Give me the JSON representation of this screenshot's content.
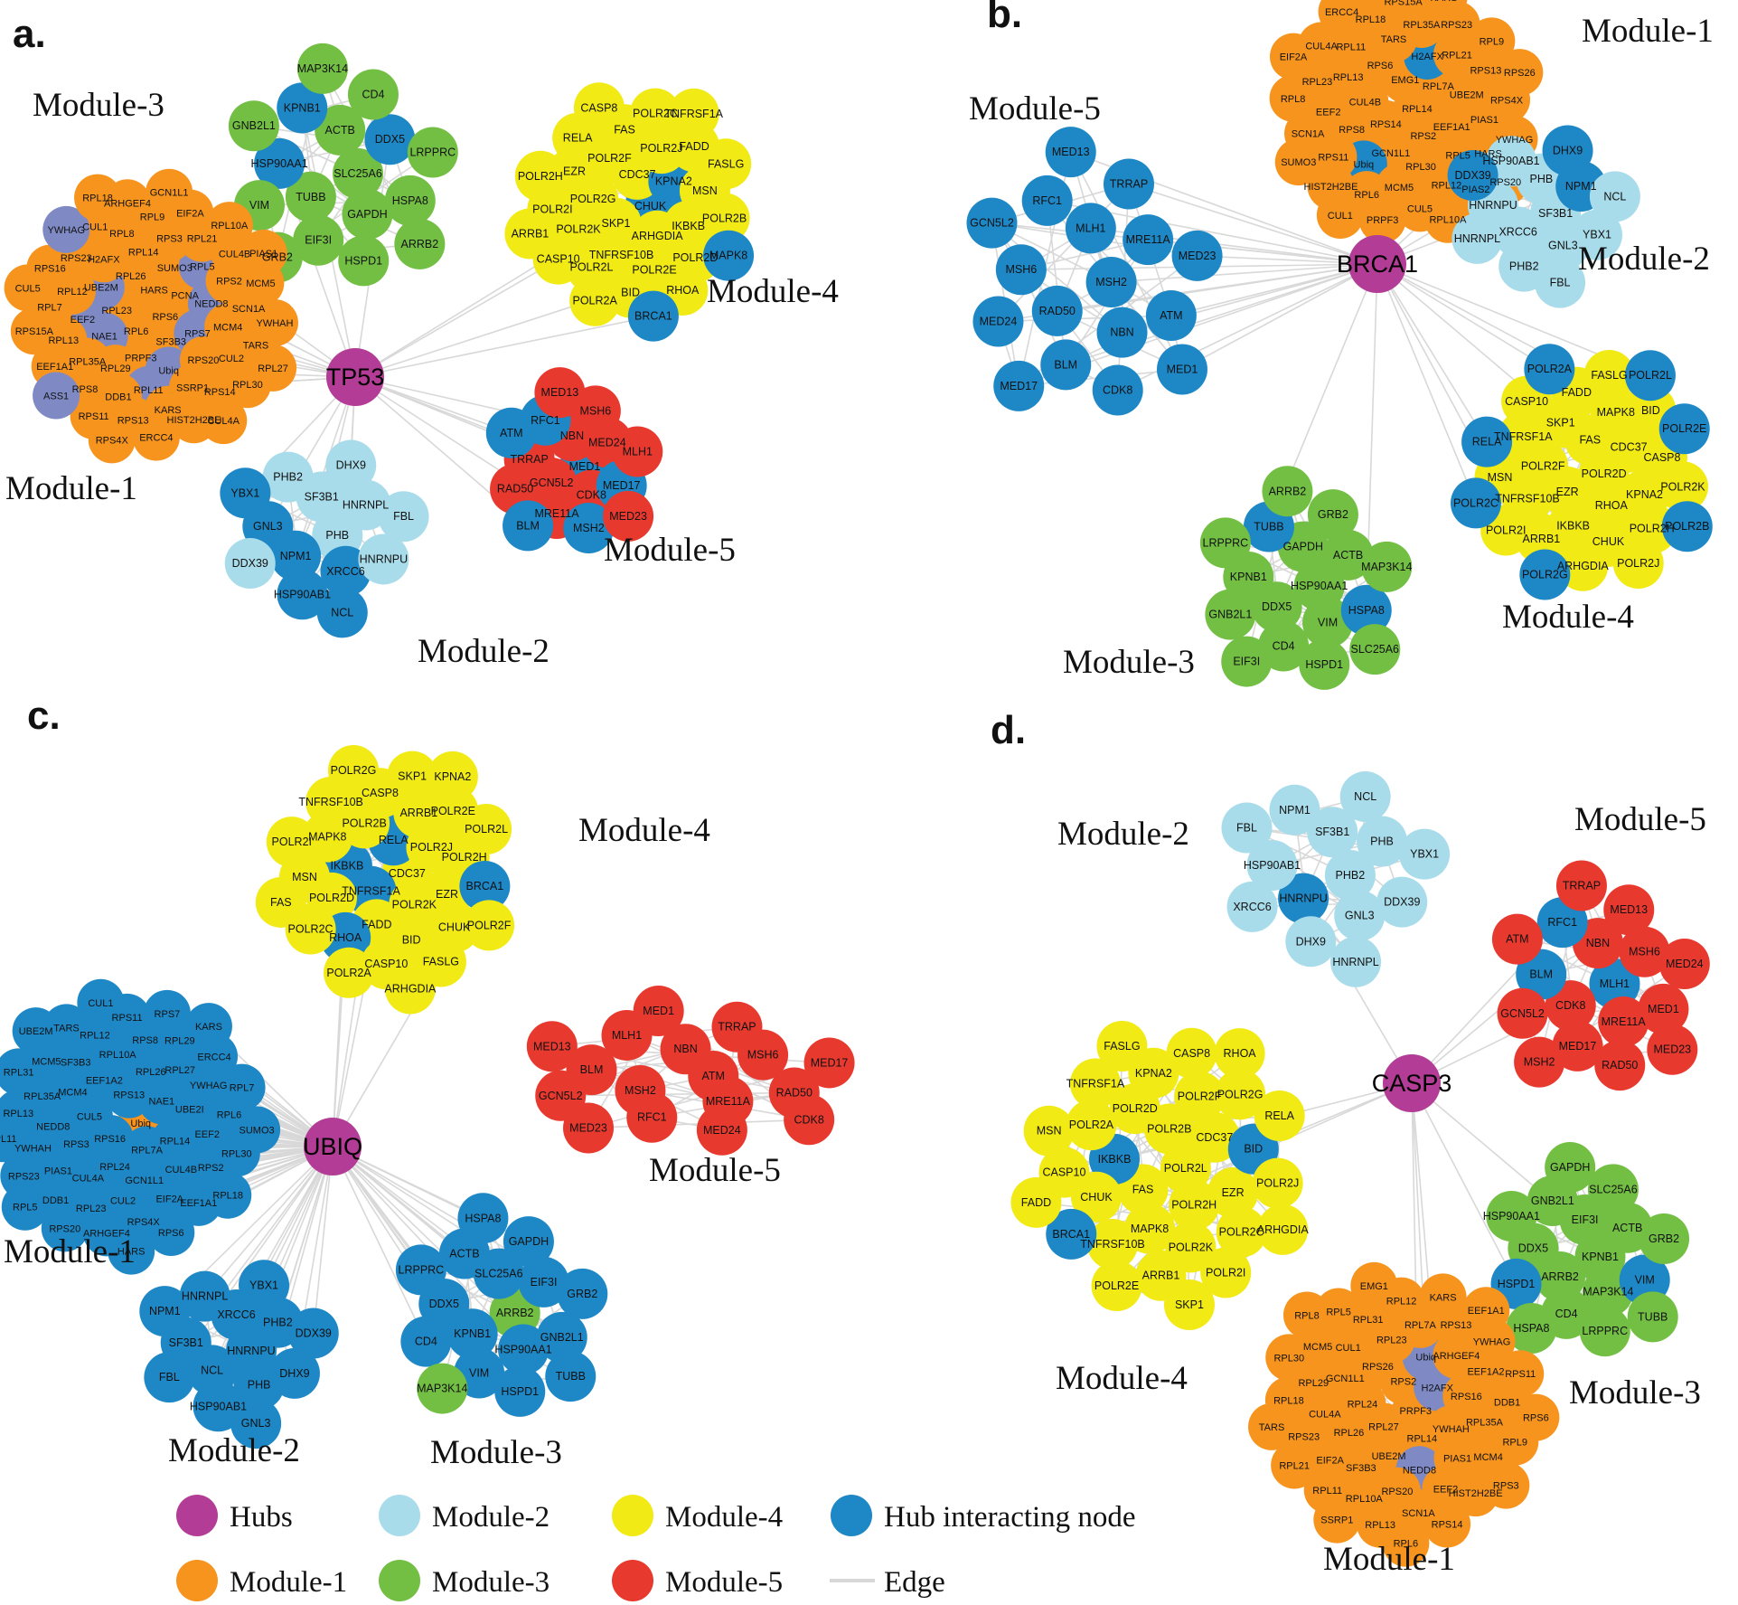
{
  "colors": {
    "hub": "#B23C96",
    "m1": "#F6941E",
    "m2": "#A9DCEA",
    "m3": "#72BF44",
    "m4": "#F1EA15",
    "m5": "#E8392F",
    "hub_node": "#1E87C6",
    "slate": "#7F8AC5",
    "edge": "#D8D8D8"
  },
  "legend": {
    "items": [
      {
        "key": "hub",
        "label": "Hubs"
      },
      {
        "key": "m2",
        "label": "Module-2"
      },
      {
        "key": "m4",
        "label": "Module-4"
      },
      {
        "key": "hub_node",
        "label": "Hub interacting node"
      },
      {
        "key": "m1",
        "label": "Module-1"
      },
      {
        "key": "m3",
        "label": "Module-3"
      },
      {
        "key": "m5",
        "label": "Module-5"
      },
      {
        "key": "edge",
        "label": "Edge"
      }
    ]
  },
  "panels": [
    {
      "id": "a",
      "letter": "a.",
      "hub_label": "TP53",
      "modules": [
        {
          "key": "m3",
          "name": "Module-3",
          "nodes": [
            "SLC25A6",
            "TUBB",
            "ACTB",
            "GAPDH",
            "HSP90AA1|h",
            "DDX5|h",
            "EIF3I",
            "KPNB1|h",
            "HSPA8",
            "VIM",
            "CD4",
            "HSPD1",
            "GNB2L1",
            "LRPPRC",
            "GRB2",
            "MAP3K14",
            "ARRB2"
          ]
        },
        {
          "key": "m1",
          "name": "Module-1",
          "nodes": [
            "RPS6",
            "RPL6",
            "HARS",
            "SF3B3",
            "RPL23",
            "PCNA",
            "PRPF3",
            "RPL26",
            "RPS7|s",
            "NAE1|s",
            "SUMO3",
            "Ubiq|s",
            "UBE2M|s",
            "NEDD8|s",
            "RPL29",
            "RPL14",
            "RPS20",
            "EEF2|s",
            "RPL5|s",
            "RPL11|s",
            "H2AFX",
            "MCM4",
            "RPL35A",
            "RPS3",
            "SSRP1",
            "RPL12",
            "RPS2",
            "DDB1",
            "RPL8",
            "CUL2",
            "RPL13",
            "RPL21",
            "KARS",
            "RPS23",
            "SCN1A",
            "RPS8",
            "RPL9",
            "RPS14",
            "RPL7",
            "CUL4B",
            "RPS13",
            "CUL1",
            "TARS",
            "EEF1A1",
            "EIF2A",
            "HIST2H2BE",
            "RPS16",
            "MCM5",
            "RPS11",
            "ARHGEF4",
            "RPL30",
            "RPS15A",
            "RPL10A",
            "ERCC4",
            "YWHAG|s",
            "YWHAH",
            "ASS1|s",
            "GCN1L1",
            "CUL4A",
            "CUL5",
            "PIAS1",
            "RPS4X",
            "RPL18",
            "RPL27"
          ]
        },
        {
          "key": "m4",
          "name": "Module-4",
          "nodes": [
            "CHUK|h",
            "SKP1",
            "CDC37",
            "ARHGDIA",
            "POLR2G",
            "KPNA2|h",
            "TNFRSF10B",
            "POLR2F",
            "IKBKB",
            "POLR2K",
            "POLR2J",
            "POLR2E",
            "EZR",
            "MSN",
            "POLR2L",
            "FAS",
            "POLR2D",
            "POLR2I",
            "FADD",
            "BID",
            "RELA",
            "POLR2B",
            "CASP10",
            "POLR2C",
            "RHOA",
            "POLR2H",
            "FASLG",
            "POLR2A",
            "CASP8",
            "MAPK8|h",
            "ARRB1",
            "TNFRSF1A",
            "BRCA1|h"
          ]
        },
        {
          "key": "m2",
          "name": "Module-2",
          "nodes": [
            "PHB",
            "NPM1|h",
            "SF3B1",
            "XRCC6|h",
            "GNL3|h",
            "HNRNPL",
            "HSP90AB1|h",
            "PHB2",
            "HNRNPU",
            "DDX39",
            "DHX9",
            "NCL|h",
            "YBX1|h",
            "FBL"
          ]
        },
        {
          "key": "m5",
          "name": "Module-5",
          "nodes": [
            "MED1|h",
            "GCN5L2",
            "NBN",
            "CDK8",
            "TRRAP",
            "MED24",
            "MRE11A",
            "RFC1|h",
            "MED17|h",
            "RAD50",
            "MSH6",
            "MSH2|h",
            "ATM|h",
            "MLH1",
            "BLM|h",
            "MED13",
            "MED23"
          ]
        }
      ]
    },
    {
      "id": "b",
      "letter": "b.",
      "hub_label": "BRCA1",
      "modules": [
        {
          "key": "m5",
          "name": "Module-5",
          "nodes": [
            "MSH2|h",
            "RAD50|h",
            "MLH1|h",
            "NBN|h",
            "MSH6|h",
            "MRE11A|h",
            "BLM|h",
            "RFC1|h",
            "ATM|h",
            "MED24|h",
            "TRRAP|h",
            "CDK8|h",
            "GCN5L2|h",
            "MED23|h",
            "MED17|h",
            "MED13|h",
            "MED1|h"
          ]
        },
        {
          "key": "m1",
          "name": "Module-1",
          "nodes": [
            "RPL14",
            "RPS14",
            "EMG1",
            "RPS2",
            "CUL4B",
            "RPL7A",
            "GCN1L1",
            "RPS6",
            "EEF1A1",
            "RPS8",
            "H2AFX|h",
            "RPL30",
            "RPL13",
            "UBE2M",
            "Ubiq|h",
            "TARS",
            "RPL5",
            "EEF2",
            "RPL21",
            "MCM5",
            "RPL11",
            "PIAS1",
            "RPS11",
            "RPL35A",
            "RPL12",
            "RPL23",
            "RPS13",
            "RPL6",
            "RPL18",
            "HARS",
            "SCN1A",
            "RPS23",
            "CUL5",
            "CUL4A",
            "RPS4X",
            "HIST2H2BE",
            "RPS15A",
            "PIAS2",
            "RPL8",
            "RPL9",
            "PRPF3",
            "ERCC4",
            "YWHAG",
            "SUMO3",
            "KARS",
            "RPL10A",
            "EIF2A",
            "RPS26",
            "CUL1",
            "RPL29",
            "RPS20"
          ]
        },
        {
          "key": "m2",
          "name": "Module-2",
          "nodes": [
            "SF3B1",
            "XRCC6",
            "PHB",
            "GNL3",
            "HNRNPU",
            "NPM1|h",
            "PHB2",
            "HSP90AB1",
            "YBX1",
            "HNRNPL",
            "DHX9|h",
            "FBL",
            "DDX39|h",
            "NCL"
          ]
        },
        {
          "key": "m4",
          "name": "Module-4",
          "nodes": [
            "POLR2D",
            "EZR",
            "FAS",
            "RHOA",
            "POLR2F",
            "CDC37",
            "IKBKB",
            "SKP1",
            "KPNA2",
            "TNFRSF10B",
            "MAPK8",
            "CHUK",
            "TNFRSF1A",
            "CASP8",
            "ARRB1",
            "FADD",
            "POLR2H",
            "MSN",
            "BID",
            "ARHGDIA",
            "CASP10",
            "POLR2K",
            "POLR2I",
            "FASLG",
            "POLR2J",
            "RELA|h",
            "POLR2E|h",
            "POLR2G|h",
            "POLR2A|h",
            "POLR2B|h",
            "POLR2C|h",
            "POLR2L|h"
          ]
        },
        {
          "key": "m3",
          "name": "Module-3",
          "nodes": [
            "HSP90AA1",
            "DDX5",
            "GAPDH",
            "VIM",
            "KPNB1",
            "ACTB",
            "CD4",
            "TUBB|h",
            "HSPA8|h",
            "GNB2L1",
            "GRB2",
            "HSPD1",
            "LRPPRC",
            "MAP3K14",
            "EIF3I",
            "ARRB2",
            "SLC25A6"
          ]
        }
      ]
    },
    {
      "id": "c",
      "letter": "c.",
      "hub_label": "UBIQ",
      "modules": [
        {
          "key": "m4",
          "name": "Module-4",
          "nodes": [
            "CDC37",
            "TNFRSF1A|h",
            "RELA|h",
            "POLR2K",
            "IKBKB|h",
            "POLR2J",
            "FADD",
            "POLR2B",
            "EZR",
            "POLR2D",
            "ARRB1",
            "BID",
            "MAPK8",
            "POLR2H",
            "RHOA|h",
            "CASP8",
            "CHUK",
            "MSN",
            "POLR2E",
            "CASP10",
            "TNFRSF10B",
            "BRCA1|h",
            "POLR2C",
            "SKP1",
            "FASLG",
            "POLR2I",
            "POLR2L",
            "POLR2A",
            "POLR2G",
            "POLR2F",
            "FAS",
            "KPNA2",
            "ARHGDIA"
          ]
        },
        {
          "key": "m1",
          "name": "Module-1",
          "nodes": [
            "Ubiq|o",
            "RPS16|h",
            "RPS13|h",
            "RPL7A|h",
            "CUL5|h",
            "NAE1|h",
            "RPL24|h",
            "EEF1A2|h",
            "RPL14|h",
            "RPS3|h",
            "RPL26|h",
            "GCN1L1|h",
            "MCM4|h",
            "UBE2I|h",
            "CUL4A|h",
            "RPL10A|h",
            "CUL4B|h",
            "NEDD8|h",
            "RPL27|h",
            "CUL2|h",
            "SF3B3|h",
            "EEF2|h",
            "PIAS1|h",
            "RPS8|h",
            "EIF2A|h",
            "RPL35A|h",
            "YWHAG|h",
            "RPL23|h",
            "RPL12|h",
            "RPS2|h",
            "YWHAH|h",
            "RPL29|h",
            "RPS4X|h",
            "MCM5|h",
            "RPL6|h",
            "DDB1|h",
            "RPS11|h",
            "EEF1A1|h",
            "RPL13|h",
            "ERCC4|h",
            "ARHGEF4|h",
            "TARS|h",
            "RPL30|h",
            "RPS23|h",
            "RPS7|h",
            "RPS6|h",
            "RPL31|h",
            "RPL7|h",
            "RPS20|h",
            "CUL1|h",
            "RPL18|h",
            "RPL11|h",
            "KARS|h",
            "HARS|h",
            "UBE2M|h",
            "SUMO3|h",
            "RPL5|h"
          ]
        },
        {
          "key": "m2",
          "name": "Module-2",
          "nodes": [
            "HNRNPU|h",
            "NCL|h",
            "XRCC6|h",
            "PHB|h",
            "SF3B1|h",
            "PHB2|h",
            "HSP90AB1|h",
            "HNRNPL|h",
            "DHX9|h",
            "FBL|h",
            "YBX1|h",
            "GNL3|h",
            "NPM1|h",
            "DDX39|h"
          ]
        },
        {
          "key": "m3",
          "name": "Module-3",
          "nodes": [
            "ARRB2|g",
            "KPNB1|h",
            "SLC25A6|h",
            "HSP90AA1|h",
            "DDX5|h",
            "EIF3I|h",
            "VIM|h",
            "ACTB|h",
            "GNB2L1|h",
            "CD4|h",
            "GAPDH|h",
            "HSPD1|h",
            "LRPPRC|h",
            "GRB2|h",
            "MAP3K14|g",
            "HSPA8|h",
            "TUBB|h"
          ]
        },
        {
          "key": "m5",
          "name": "Module-5",
          "nodes": [
            "ATM",
            "MSH2",
            "NBN",
            "MRE11A",
            "BLM",
            "MSH6",
            "RFC1",
            "MLH1",
            "RAD50",
            "GCN5L2",
            "TRRAP",
            "MED24",
            "MED13",
            "MED17",
            "MED23",
            "MED1",
            "CDK8"
          ]
        }
      ]
    },
    {
      "id": "d",
      "letter": "d.",
      "hub_label": "CASP3",
      "modules": [
        {
          "key": "m2",
          "name": "Module-2",
          "nodes": [
            "PHB2",
            "HNRNPU|h",
            "SF3B1",
            "GNL3",
            "HSP90AB1",
            "PHB",
            "DHX9",
            "NPM1",
            "DDX39",
            "XRCC6",
            "NCL",
            "HNRNPL",
            "FBL",
            "YBX1"
          ]
        },
        {
          "key": "m5",
          "name": "Module-5",
          "nodes": [
            "MLH1|h",
            "CDK8",
            "NBN",
            "MRE11A",
            "BLM|h",
            "MSH6",
            "MED17",
            "RFC1|h",
            "MED1",
            "GCN5L2",
            "MED13",
            "RAD50",
            "ATM",
            "MED24",
            "MSH2",
            "TRRAP",
            "MED23"
          ]
        },
        {
          "key": "m4",
          "name": "Module-4",
          "nodes": [
            "POLR2L",
            "FAS",
            "POLR2B",
            "POLR2H",
            "IKBKB|h",
            "CDC37",
            "MAPK8",
            "POLR2D",
            "EZR",
            "CHUK",
            "POLR2F",
            "POLR2K",
            "POLR2A",
            "BID|h",
            "TNFRSF10B",
            "KPNA2",
            "POLR2C",
            "CASP10",
            "POLR2G",
            "ARRB1",
            "TNFRSF1A",
            "POLR2J",
            "BRCA1|h",
            "CASP8",
            "POLR2I",
            "MSN",
            "RELA",
            "POLR2E",
            "FASLG",
            "ARHGDIA",
            "FADD",
            "RHOA",
            "SKP1"
          ]
        },
        {
          "key": "m3",
          "name": "Module-3",
          "nodes": [
            "KPNB1",
            "ARRB2",
            "EIF3I",
            "MAP3K14",
            "DDX5",
            "ACTB",
            "CD4",
            "GNB2L1",
            "VIM|h",
            "HSPD1|h",
            "SLC25A6",
            "LRPPRC",
            "HSP90AA1",
            "GRB2",
            "HSPA8",
            "GAPDH",
            "TUBB"
          ]
        },
        {
          "key": "m1",
          "name": "Module-1",
          "nodes": [
            "PRPF3",
            "RPL27",
            "RPS2",
            "RPL14",
            "RPL24",
            "H2AFX|s",
            "UBE2M",
            "RPS26",
            "YWHAH",
            "RPL26",
            "Ubiq|s",
            "NEDD8|s",
            "GCN1L1",
            "RPS16",
            "SF3B3",
            "RPL23",
            "PIAS1",
            "CUL4A",
            "ARHGEF4",
            "RPS20",
            "CUL1",
            "RPL35A",
            "EIF2A",
            "RPL7A",
            "EEF2",
            "RPL29",
            "EEF1A2",
            "RPL10A",
            "RPL31",
            "MCM4",
            "RPS23",
            "RPS13",
            "SCN1A",
            "MCM5",
            "DDB1",
            "RPL11",
            "RPL12",
            "HIST2H2BE",
            "RPL18",
            "YWHAG",
            "RPL13",
            "RPL5",
            "RPL9",
            "RPL21",
            "KARS",
            "RPS14",
            "RPL30",
            "RPS11",
            "SSRP1",
            "EMG1",
            "RPS3",
            "TARS",
            "EEF1A1",
            "RPL6",
            "RPL8",
            "RPS6"
          ]
        }
      ]
    }
  ]
}
